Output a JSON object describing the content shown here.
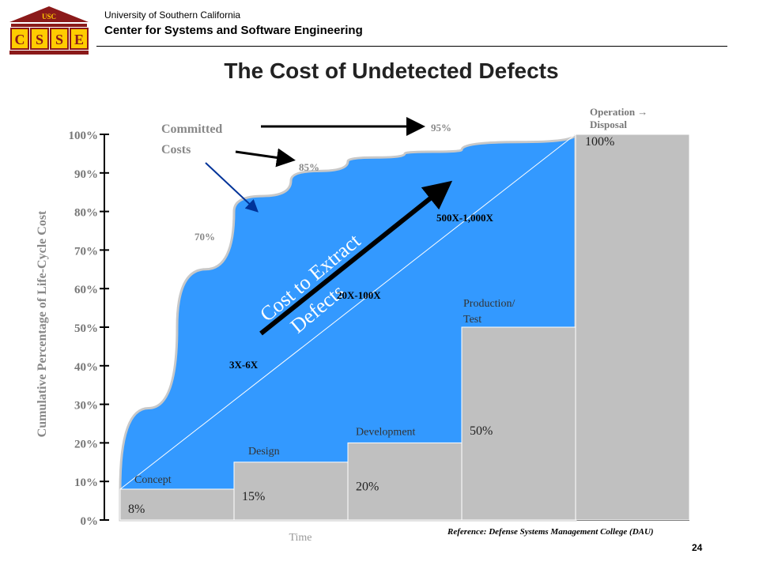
{
  "header": {
    "university": "University of Southern California",
    "center": "Center for Systems and Software Engineering",
    "logo": {
      "top_text": "USC",
      "letters": [
        "C",
        "S",
        "S",
        "E"
      ]
    }
  },
  "slide": {
    "title": "The Cost of Undetected Defects",
    "reference": "Reference: Defense Systems Management College (DAU)",
    "page_number": "24"
  },
  "chart_data": {
    "type": "area",
    "title": "The Cost of Undetected Defects",
    "xlabel": "Time",
    "ylabel": "Cumulative Percentage of Life-Cycle Cost",
    "ylim": [
      0,
      100
    ],
    "y_ticks": [
      "0%",
      "10%",
      "20%",
      "30%",
      "40%",
      "50%",
      "60%",
      "70%",
      "80%",
      "90%",
      "100%"
    ],
    "phases": [
      {
        "name": "Concept",
        "spent": 8,
        "spent_label": "8%"
      },
      {
        "name": "Design",
        "spent": 15,
        "spent_label": "15%"
      },
      {
        "name": "Development",
        "spent": 20,
        "spent_label": "20%"
      },
      {
        "name": "Production/ Test",
        "spent": 50,
        "spent_label": "50%"
      },
      {
        "name": "Operation → Disposal",
        "spent": 100,
        "spent_label": "100%"
      }
    ],
    "committed_curve": {
      "name": "Committed Costs",
      "points": [
        [
          0,
          8
        ],
        [
          0.5,
          50
        ],
        [
          1.0,
          80
        ],
        [
          1.5,
          88
        ],
        [
          2.0,
          93
        ],
        [
          2.5,
          95
        ],
        [
          3.0,
          96
        ],
        [
          4.0,
          100
        ]
      ],
      "annotations": [
        {
          "label": "70%",
          "phase_x": 0.6,
          "y": 70
        },
        {
          "label": "85%",
          "phase_x": 1.55,
          "y": 85
        },
        {
          "label": "95%",
          "phase_x": 2.78,
          "y": 95
        }
      ]
    },
    "extraction_cost": {
      "label": "Cost to Extract Defects",
      "multipliers": [
        {
          "label": "3X-6X",
          "phase_x": 0.95,
          "y": 40
        },
        {
          "label": "20X-100X",
          "phase_x": 1.95,
          "y": 58
        },
        {
          "label": "500X-1,000X",
          "phase_x": 2.78,
          "y": 78
        }
      ]
    },
    "colors": {
      "committed_fill": "#3399ff",
      "spent_fill": "#c0c0c0",
      "arrow": "#000000",
      "pointer": "#003399"
    },
    "grid": false
  }
}
